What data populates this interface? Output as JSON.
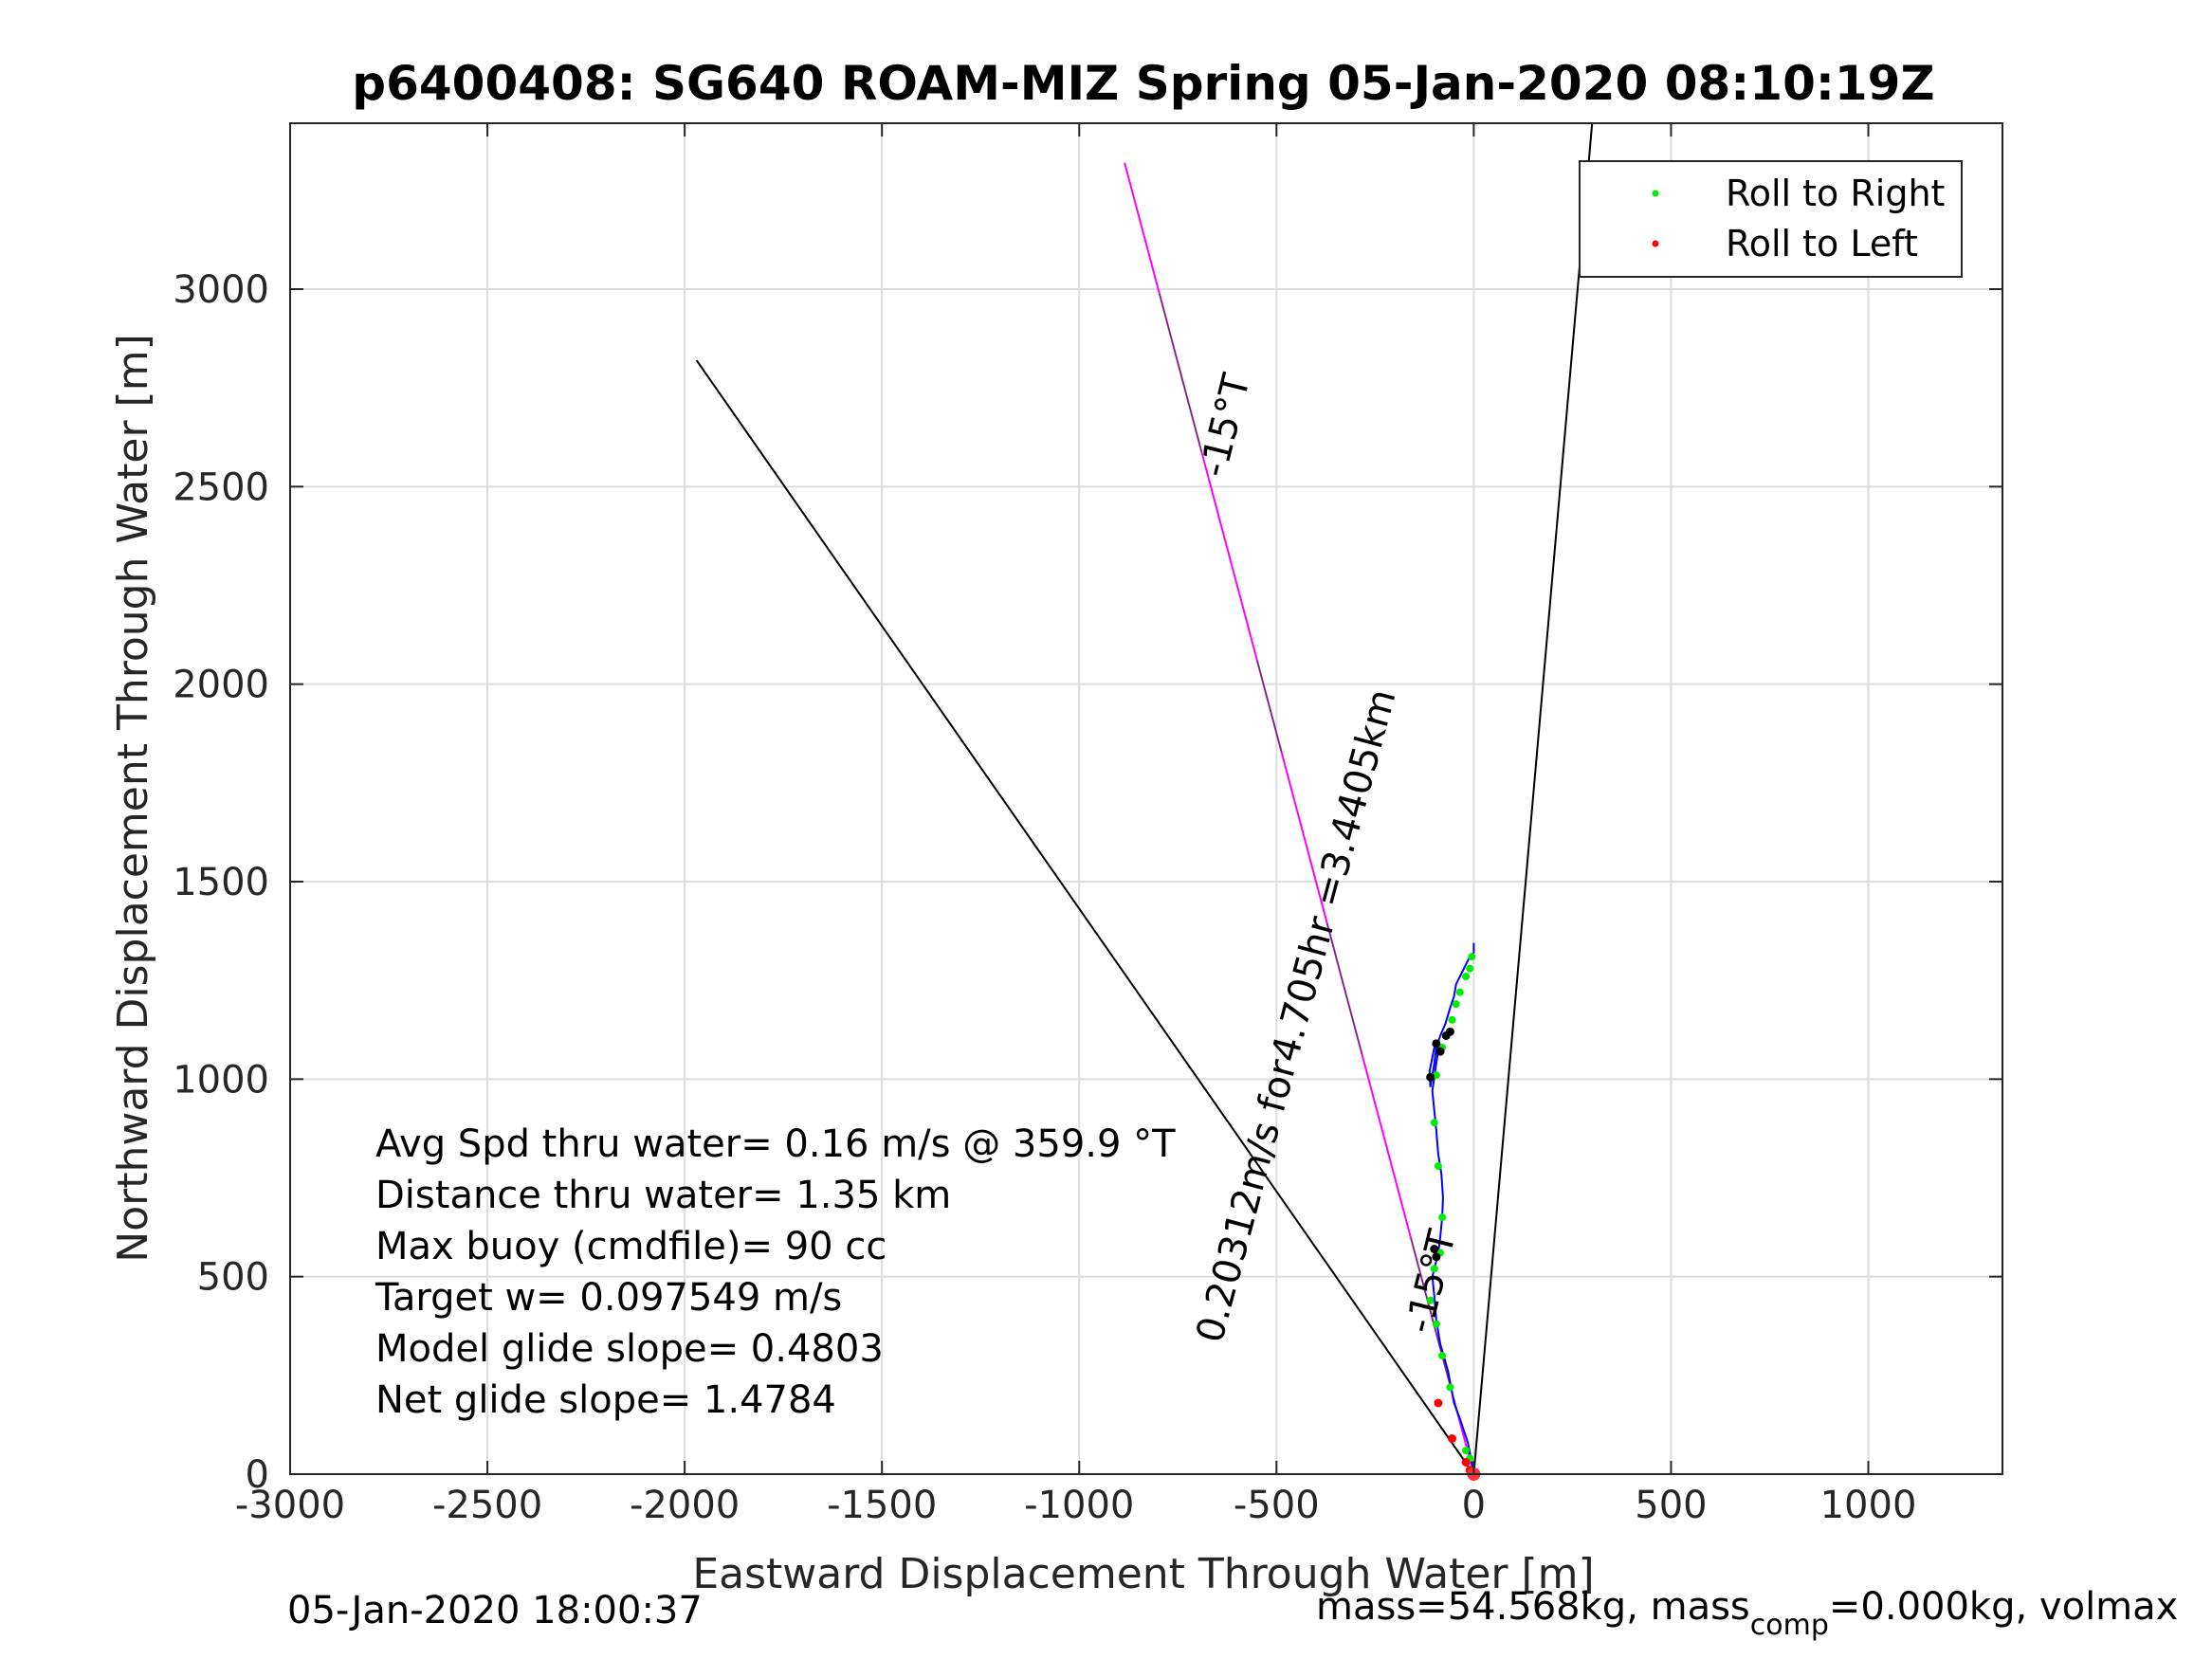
{
  "chart_data": {
    "type": "line",
    "title": "p6400408: SG640 ROAM-MIZ Spring 05-Jan-2020 08:10:19Z",
    "xlabel": "Eastward Displacement Through Water [m]",
    "ylabel": "Northward Displacement Through Water [m]",
    "xlim": [
      -3000,
      1340
    ],
    "ylim": [
      0,
      3420
    ],
    "xticks": [
      -3000,
      -2500,
      -2000,
      -1500,
      -1000,
      -500,
      0,
      500,
      1000
    ],
    "yticks": [
      0,
      500,
      1000,
      1500,
      2000,
      2500,
      3000
    ],
    "grid": true,
    "legend_position": "top-right",
    "legend": [
      "Roll to Right",
      "Roll to Left"
    ],
    "colors": {
      "roll_right": "#00ee00",
      "roll_left": "#ff0000",
      "track": "#0000ff",
      "current": "#ff00ff",
      "reference": "#000000"
    },
    "series": [
      {
        "name": "track",
        "x": [
          0,
          -5,
          -15,
          -35,
          -50,
          -65,
          -85,
          -95,
          -100,
          -105,
          -90,
          -85,
          -80,
          -78,
          -82,
          -90,
          -95,
          -100,
          -105,
          -100,
          -95,
          -92,
          -90,
          -93,
          -100,
          -112,
          -110,
          -100,
          -95,
          -85,
          -72,
          -60,
          -50,
          -45,
          -35,
          -20,
          -10,
          0,
          0
        ],
        "y": [
          0,
          30,
          80,
          140,
          180,
          260,
          330,
          390,
          450,
          500,
          560,
          600,
          650,
          700,
          760,
          810,
          870,
          920,
          970,
          1005,
          1040,
          1060,
          1080,
          1085,
          1080,
          1020,
          980,
          1040,
          1080,
          1110,
          1140,
          1180,
          1210,
          1240,
          1260,
          1290,
          1310,
          1320,
          1345
        ]
      },
      {
        "name": "Roll to Right",
        "x": [
          -10,
          -20,
          -60,
          -80,
          -95,
          -110,
          -100,
          -85,
          -80,
          -90,
          -100,
          -95,
          -80,
          -55,
          -45,
          -35,
          -20,
          -10,
          -5
        ],
        "y": [
          40,
          60,
          220,
          300,
          380,
          440,
          520,
          560,
          650,
          780,
          890,
          1010,
          1080,
          1150,
          1190,
          1220,
          1260,
          1280,
          1310
        ]
      },
      {
        "name": "Roll to Left",
        "x": [
          -90,
          -55,
          -20,
          -10
        ],
        "y": [
          180,
          90,
          30,
          10
        ]
      },
      {
        "name": "black-marks",
        "x": [
          -95,
          -100,
          -85,
          -95,
          -110,
          -70,
          -60
        ],
        "y": [
          550,
          570,
          1070,
          1090,
          1005,
          1110,
          1120
        ]
      }
    ],
    "reference_lines": [
      {
        "name": "heading-line",
        "x": [
          0,
          -1970
        ],
        "y": [
          0,
          2820
        ]
      },
      {
        "name": "target-line",
        "x": [
          0,
          300
        ],
        "y": [
          0,
          3420
        ]
      },
      {
        "name": "current-line",
        "x": [
          0,
          -885
        ],
        "y": [
          0,
          3320
        ]
      }
    ],
    "annotations": {
      "heading_label": "-15°T",
      "heading_label_lower": "-15°T",
      "current_label": "0.20312m/s for4.705hr =3.4405km"
    },
    "stats": [
      "Avg Spd thru water=  0.16 m/s @ 359.9 °T",
      "Distance thru water=  1.35 km",
      "Max buoy (cmdfile)= 90 cc",
      "Target w= 0.097549 m/s",
      "Model glide slope= 0.4803",
      "Net glide slope= 1.4784"
    ]
  },
  "footer": {
    "timestamp": "05-Jan-2020 18:00:37",
    "mass_text": "mass=54.568kg, mass",
    "mass_sub": "comp",
    "mass_rest": "=0.000kg, volmax"
  }
}
